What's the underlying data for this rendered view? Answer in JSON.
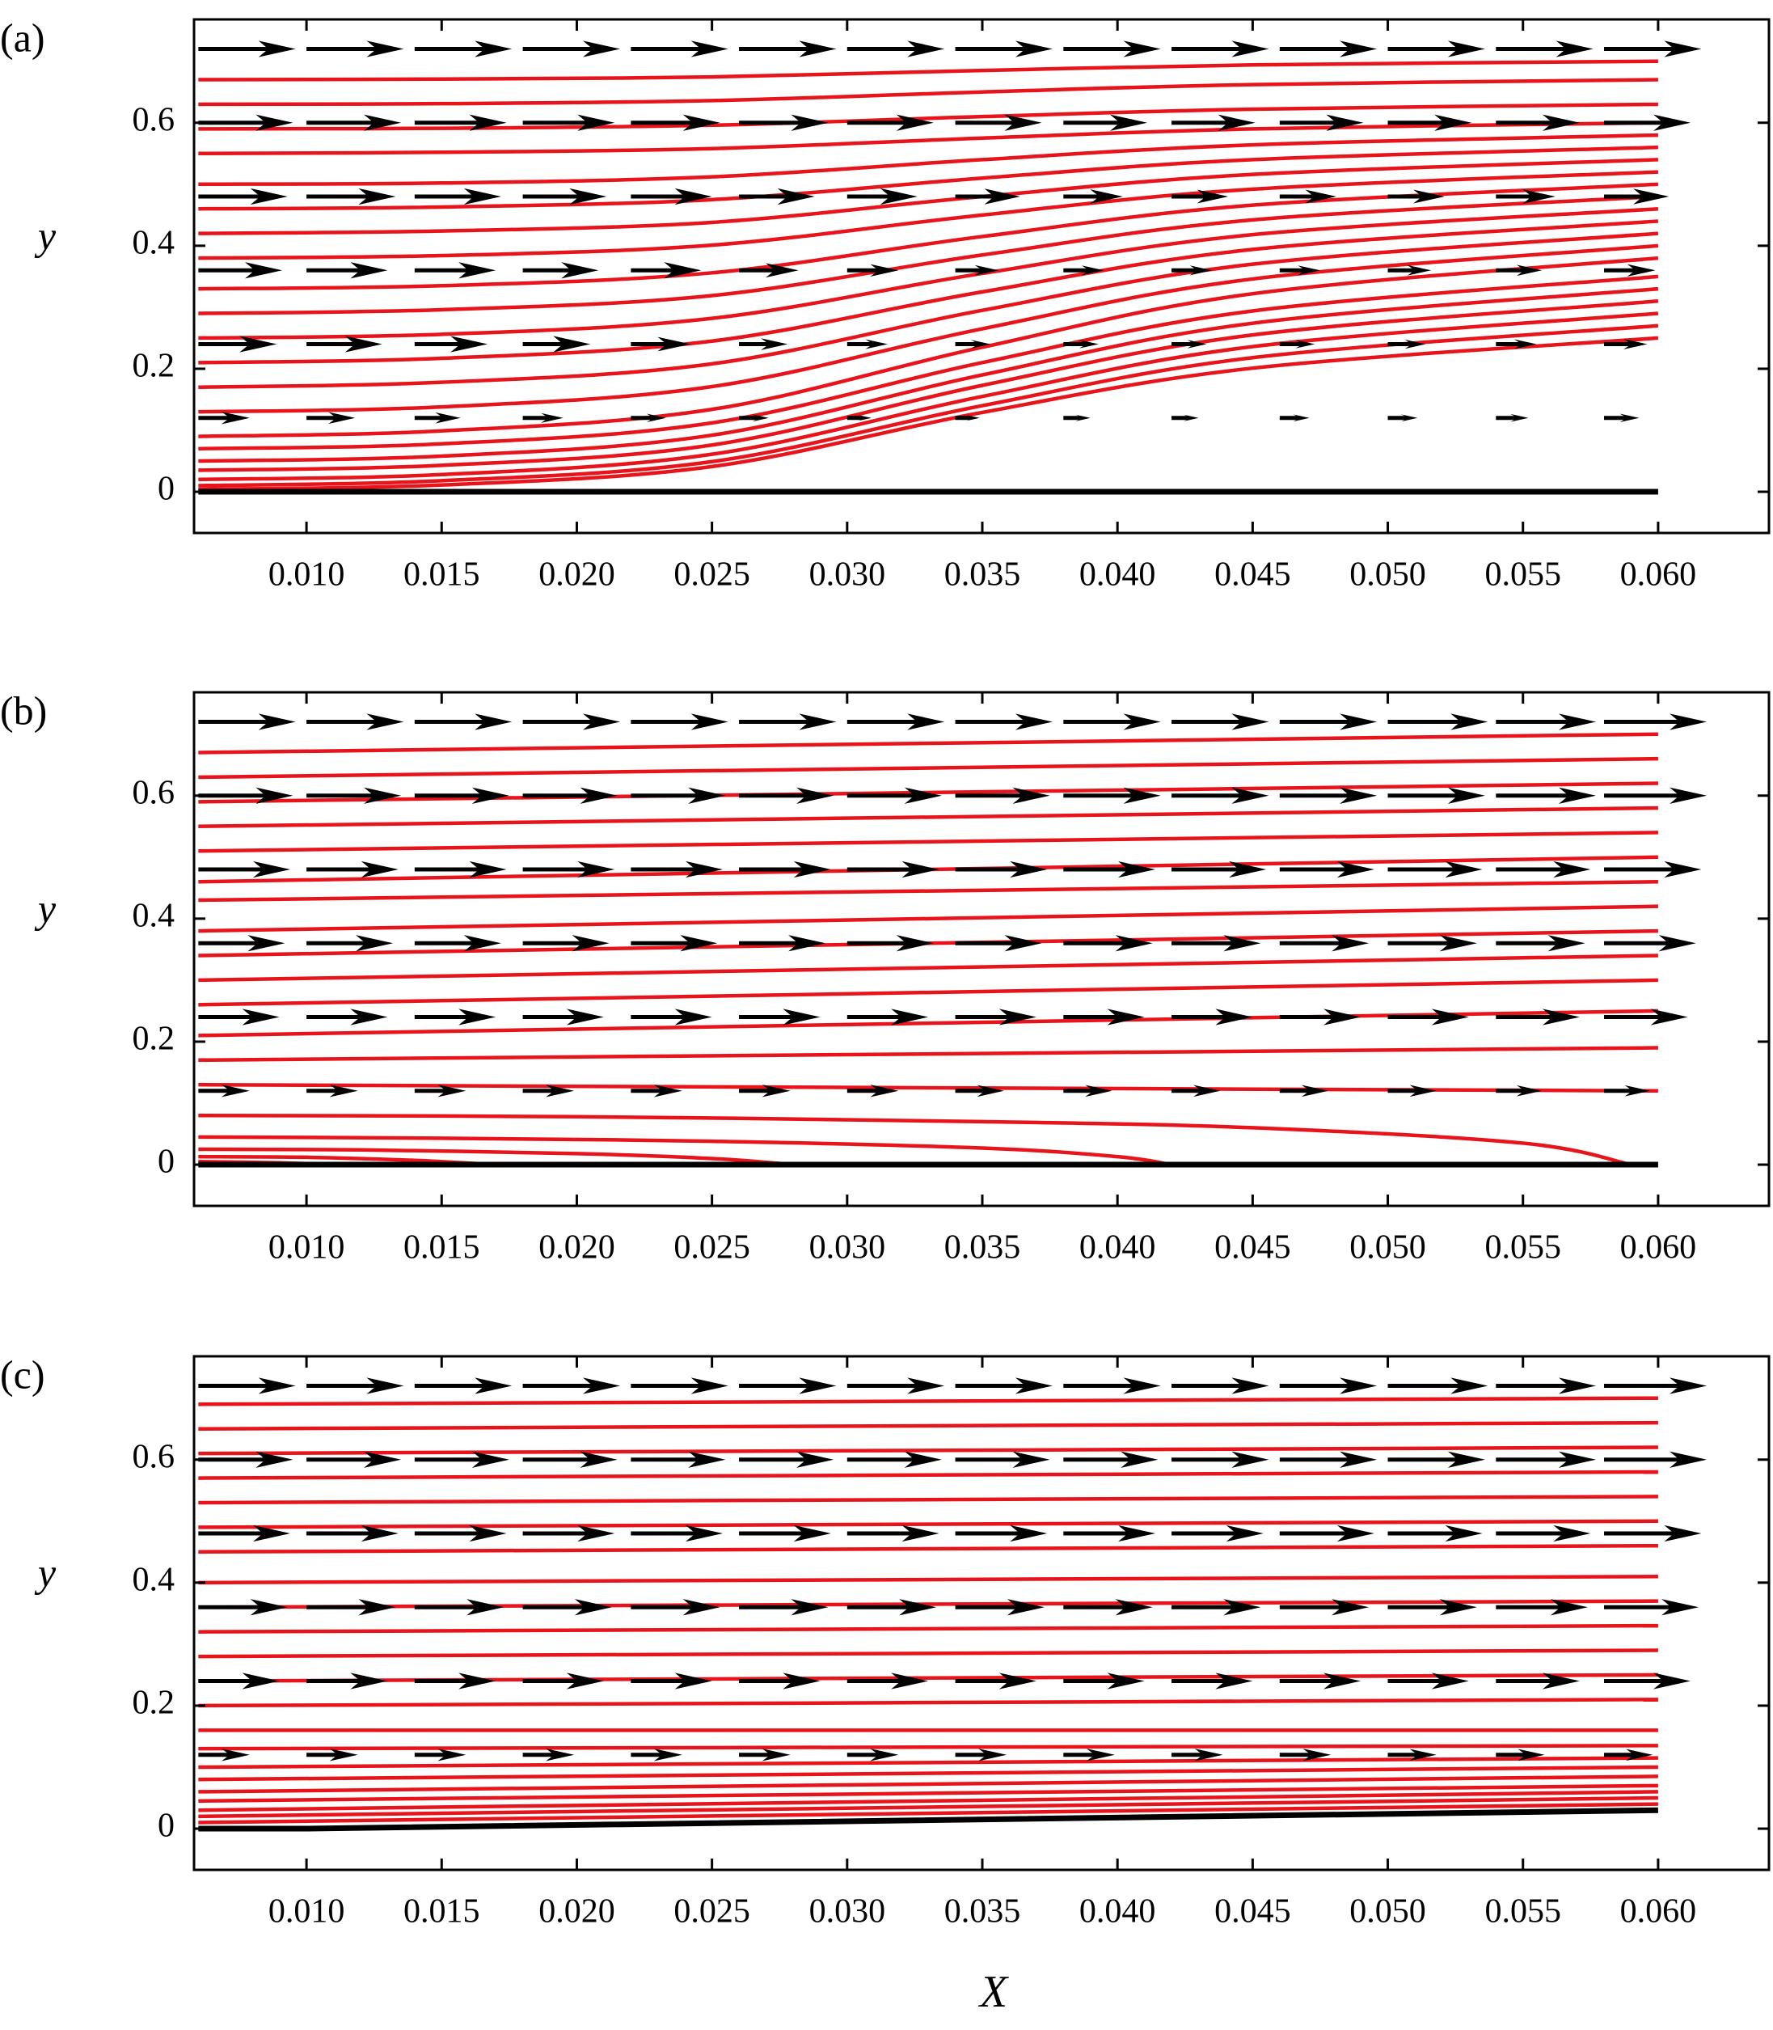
{
  "chart_data": [
    {
      "type": "streamlines",
      "panel_label": "(a)",
      "ylabel": "y",
      "xlim": [
        0.00584,
        0.0641
      ],
      "ylim": [
        -0.067,
        0.768
      ],
      "xticks": [
        {
          "value": 0.01,
          "label": "0.010"
        },
        {
          "value": 0.015,
          "label": "0.015"
        },
        {
          "value": 0.02,
          "label": "0.020"
        },
        {
          "value": 0.025,
          "label": "0.025"
        },
        {
          "value": 0.03,
          "label": "0.030"
        },
        {
          "value": 0.035,
          "label": "0.035"
        },
        {
          "value": 0.04,
          "label": "0.040"
        },
        {
          "value": 0.045,
          "label": "0.045"
        },
        {
          "value": 0.05,
          "label": "0.050"
        },
        {
          "value": 0.055,
          "label": "0.055"
        },
        {
          "value": 0.06,
          "label": "0.060"
        }
      ],
      "yticks": [
        0,
        0.2,
        0.4,
        0.6
      ],
      "line_color": "#e8141c",
      "wall_color": "#000000",
      "vector_color": "#000000",
      "x": [
        0.006,
        0.015,
        0.025,
        0.035,
        0.045,
        0.06
      ],
      "streamlines": [
        {
          "values": [
            0.67,
            0.671,
            0.6745,
            0.685,
            0.694,
            0.7
          ]
        },
        {
          "values": [
            0.63,
            0.631,
            0.636,
            0.65,
            0.662,
            0.67
          ]
        },
        {
          "values": [
            0.59,
            0.591,
            0.596,
            0.61,
            0.622,
            0.63
          ]
        },
        {
          "values": [
            0.55,
            0.552,
            0.558,
            0.575,
            0.59,
            0.6
          ]
        },
        {
          "values": [
            0.5,
            0.502,
            0.512,
            0.54,
            0.564,
            0.58
          ]
        },
        {
          "values": [
            0.46,
            0.463,
            0.475,
            0.51,
            0.54,
            0.56
          ]
        },
        {
          "values": [
            0.42,
            0.424,
            0.438,
            0.48,
            0.516,
            0.54
          ]
        },
        {
          "values": [
            0.38,
            0.384,
            0.401,
            0.45,
            0.492,
            0.52
          ]
        },
        {
          "values": [
            0.33,
            0.335,
            0.356,
            0.415,
            0.466,
            0.5
          ]
        },
        {
          "values": [
            0.29,
            0.296,
            0.319,
            0.385,
            0.442,
            0.48
          ]
        },
        {
          "values": [
            0.25,
            0.256,
            0.282,
            0.355,
            0.418,
            0.46
          ]
        },
        {
          "values": [
            0.21,
            0.217,
            0.245,
            0.325,
            0.394,
            0.44
          ]
        },
        {
          "values": [
            0.17,
            0.178,
            0.208,
            0.295,
            0.37,
            0.42
          ]
        },
        {
          "values": [
            0.13,
            0.138,
            0.171,
            0.265,
            0.346,
            0.4
          ]
        },
        {
          "values": [
            0.09,
            0.099,
            0.134,
            0.235,
            0.322,
            0.38
          ]
        },
        {
          "values": [
            0.07,
            0.078,
            0.112,
            0.21,
            0.294,
            0.35
          ]
        },
        {
          "values": [
            0.05,
            0.058,
            0.092,
            0.19,
            0.274,
            0.33
          ]
        },
        {
          "values": [
            0.035,
            0.043,
            0.076,
            0.173,
            0.255,
            0.31
          ]
        },
        {
          "values": [
            0.02,
            0.028,
            0.061,
            0.155,
            0.236,
            0.29
          ]
        },
        {
          "values": [
            0.01,
            0.018,
            0.049,
            0.14,
            0.218,
            0.27
          ]
        },
        {
          "values": [
            0.004,
            0.011,
            0.041,
            0.129,
            0.201,
            0.25
          ]
        }
      ],
      "wall": {
        "x": [
          0.006,
          0.06
        ],
        "values": [
          0,
          0
        ]
      },
      "vector_x": [
        0.006,
        0.01,
        0.014,
        0.018,
        0.022,
        0.026,
        0.03,
        0.034,
        0.038,
        0.042,
        0.046,
        0.05,
        0.054,
        0.058
      ],
      "vectors": [
        {
          "y": 0.72,
          "u": [
            0.0036,
            0.0036,
            0.0036,
            0.0036,
            0.0036,
            0.0036,
            0.0036,
            0.0036,
            0.0036,
            0.0036,
            0.0036,
            0.0036,
            0.0036,
            0.0036
          ]
        },
        {
          "y": 0.6,
          "u": [
            0.0035,
            0.0035,
            0.0034,
            0.0034,
            0.0033,
            0.0033,
            0.0032,
            0.0032,
            0.0031,
            0.0031,
            0.0031,
            0.0031,
            0.0031,
            0.0032
          ]
        },
        {
          "y": 0.48,
          "u": [
            0.0033,
            0.0033,
            0.0032,
            0.0031,
            0.003,
            0.0028,
            0.0026,
            0.0024,
            0.0022,
            0.0021,
            0.0021,
            0.0021,
            0.0022,
            0.0024
          ]
        },
        {
          "y": 0.36,
          "u": [
            0.0031,
            0.003,
            0.003,
            0.0028,
            0.0026,
            0.0022,
            0.0019,
            0.0016,
            0.0015,
            0.0015,
            0.0015,
            0.0016,
            0.0017,
            0.0019
          ]
        },
        {
          "y": 0.24,
          "u": [
            0.0029,
            0.0028,
            0.0027,
            0.0025,
            0.0022,
            0.0018,
            0.0015,
            0.0013,
            0.0013,
            0.0013,
            0.0013,
            0.0014,
            0.0015,
            0.0016
          ]
        },
        {
          "y": 0.12,
          "u": [
            0.0019,
            0.0018,
            0.0017,
            0.0015,
            0.0013,
            0.0011,
            0.0009,
            0.0009,
            0.001,
            0.001,
            0.0011,
            0.0011,
            0.0012,
            0.0013
          ]
        }
      ]
    },
    {
      "type": "streamlines",
      "panel_label": "(b)",
      "ylabel": "y",
      "xlim": [
        0.00584,
        0.0641
      ],
      "ylim": [
        -0.067,
        0.768
      ],
      "xticks": [
        {
          "value": 0.01,
          "label": "0.010"
        },
        {
          "value": 0.015,
          "label": "0.015"
        },
        {
          "value": 0.02,
          "label": "0.020"
        },
        {
          "value": 0.025,
          "label": "0.025"
        },
        {
          "value": 0.03,
          "label": "0.030"
        },
        {
          "value": 0.035,
          "label": "0.035"
        },
        {
          "value": 0.04,
          "label": "0.040"
        },
        {
          "value": 0.045,
          "label": "0.045"
        },
        {
          "value": 0.05,
          "label": "0.050"
        },
        {
          "value": 0.055,
          "label": "0.055"
        },
        {
          "value": 0.06,
          "label": "0.060"
        }
      ],
      "yticks": [
        0,
        0.2,
        0.4,
        0.6
      ],
      "line_color": "#e8141c",
      "wall_color": "#000000",
      "vector_color": "#000000",
      "x": [
        0.006,
        0.06
      ],
      "streamlines": [
        {
          "values": [
            0.67,
            0.7
          ]
        },
        {
          "values": [
            0.63,
            0.66
          ]
        },
        {
          "values": [
            0.59,
            0.62
          ]
        },
        {
          "values": [
            0.55,
            0.58
          ]
        },
        {
          "values": [
            0.51,
            0.54
          ]
        },
        {
          "values": [
            0.46,
            0.5
          ]
        },
        {
          "values": [
            0.43,
            0.46
          ]
        },
        {
          "values": [
            0.38,
            0.42
          ]
        },
        {
          "values": [
            0.34,
            0.38
          ]
        },
        {
          "values": [
            0.3,
            0.34
          ]
        },
        {
          "values": [
            0.26,
            0.3
          ]
        },
        {
          "values": [
            0.21,
            0.25
          ]
        },
        {
          "values": [
            0.17,
            0.19
          ]
        },
        {
          "values": [
            0.13,
            0.12
          ]
        },
        {
          "x": [
            0.006,
            0.02,
            0.035,
            0.045,
            0.055,
            0.059
          ],
          "values": [
            0.08,
            0.078,
            0.07,
            0.06,
            0.035,
            0
          ]
        },
        {
          "x": [
            0.006,
            0.015,
            0.025,
            0.035,
            0.04,
            0.042
          ],
          "values": [
            0.045,
            0.043,
            0.038,
            0.027,
            0.013,
            0
          ]
        },
        {
          "x": [
            0.006,
            0.012,
            0.02,
            0.025,
            0.028
          ],
          "values": [
            0.025,
            0.024,
            0.018,
            0.01,
            0
          ]
        },
        {
          "x": [
            0.006,
            0.01,
            0.014,
            0.017
          ],
          "values": [
            0.013,
            0.012,
            0.007,
            0
          ]
        },
        {
          "x": [
            0.006,
            0.009,
            0.011
          ],
          "values": [
            0.005,
            0.003,
            0
          ]
        }
      ],
      "wall": {
        "x": [
          0.006,
          0.06
        ],
        "values": [
          0,
          0
        ]
      },
      "vector_x": [
        0.006,
        0.01,
        0.014,
        0.018,
        0.022,
        0.026,
        0.03,
        0.034,
        0.038,
        0.042,
        0.046,
        0.05,
        0.054,
        0.058
      ],
      "vectors": [
        {
          "y": 0.72,
          "u": [
            0.0036,
            0.0036,
            0.0036,
            0.0036,
            0.0036,
            0.0036,
            0.0036,
            0.0036,
            0.0036,
            0.0036,
            0.0036,
            0.0037,
            0.0037,
            0.0038
          ]
        },
        {
          "y": 0.6,
          "u": [
            0.0035,
            0.0035,
            0.0035,
            0.0035,
            0.0035,
            0.0035,
            0.0035,
            0.0035,
            0.0036,
            0.0036,
            0.0036,
            0.0036,
            0.0037,
            0.0038
          ]
        },
        {
          "y": 0.48,
          "u": [
            0.0034,
            0.0034,
            0.0034,
            0.0034,
            0.0034,
            0.0034,
            0.0034,
            0.0034,
            0.0034,
            0.0035,
            0.0035,
            0.0035,
            0.0035,
            0.0036
          ]
        },
        {
          "y": 0.36,
          "u": [
            0.0032,
            0.0032,
            0.0032,
            0.0032,
            0.0032,
            0.0032,
            0.0032,
            0.0032,
            0.0033,
            0.0033,
            0.0033,
            0.0033,
            0.0033,
            0.0034
          ]
        },
        {
          "y": 0.24,
          "u": [
            0.003,
            0.003,
            0.003,
            0.003,
            0.003,
            0.003,
            0.003,
            0.003,
            0.003,
            0.003,
            0.003,
            0.003,
            0.0031,
            0.0031
          ]
        },
        {
          "y": 0.12,
          "u": [
            0.0019,
            0.0019,
            0.0019,
            0.0019,
            0.0019,
            0.0019,
            0.0019,
            0.0018,
            0.0018,
            0.0018,
            0.0018,
            0.0018,
            0.0017,
            0.0017
          ]
        }
      ]
    },
    {
      "type": "streamlines",
      "panel_label": "(c)",
      "ylabel": "y",
      "xlabel": "X",
      "xlim": [
        0.00584,
        0.0641
      ],
      "ylim": [
        -0.067,
        0.768
      ],
      "xticks": [
        {
          "value": 0.01,
          "label": "0.010"
        },
        {
          "value": 0.015,
          "label": "0.015"
        },
        {
          "value": 0.02,
          "label": "0.020"
        },
        {
          "value": 0.025,
          "label": "0.025"
        },
        {
          "value": 0.03,
          "label": "0.030"
        },
        {
          "value": 0.035,
          "label": "0.035"
        },
        {
          "value": 0.04,
          "label": "0.040"
        },
        {
          "value": 0.045,
          "label": "0.045"
        },
        {
          "value": 0.05,
          "label": "0.050"
        },
        {
          "value": 0.055,
          "label": "0.055"
        },
        {
          "value": 0.06,
          "label": "0.060"
        }
      ],
      "yticks": [
        0,
        0.2,
        0.4,
        0.6
      ],
      "line_color": "#e8141c",
      "wall_color": "#000000",
      "vector_color": "#000000",
      "x": [
        0.006,
        0.06
      ],
      "streamlines": [
        {
          "values": [
            0.69,
            0.7
          ]
        },
        {
          "values": [
            0.65,
            0.66
          ]
        },
        {
          "values": [
            0.61,
            0.62
          ]
        },
        {
          "values": [
            0.57,
            0.58
          ]
        },
        {
          "values": [
            0.53,
            0.54
          ]
        },
        {
          "values": [
            0.49,
            0.5
          ]
        },
        {
          "values": [
            0.45,
            0.46
          ]
        },
        {
          "values": [
            0.4,
            0.41
          ]
        },
        {
          "values": [
            0.36,
            0.37
          ]
        },
        {
          "values": [
            0.32,
            0.33
          ]
        },
        {
          "values": [
            0.28,
            0.29
          ]
        },
        {
          "values": [
            0.24,
            0.25
          ]
        },
        {
          "values": [
            0.2,
            0.21
          ]
        },
        {
          "values": [
            0.16,
            0.16
          ]
        },
        {
          "values": [
            0.13,
            0.135
          ]
        },
        {
          "values": [
            0.1,
            0.115
          ]
        },
        {
          "values": [
            0.08,
            0.1
          ]
        },
        {
          "values": [
            0.06,
            0.085
          ]
        },
        {
          "values": [
            0.045,
            0.07
          ]
        },
        {
          "values": [
            0.03,
            0.06
          ]
        },
        {
          "values": [
            0.02,
            0.05
          ]
        },
        {
          "values": [
            0.01,
            0.04
          ]
        }
      ],
      "wall": {
        "x": [
          0.006,
          0.01,
          0.06
        ],
        "values": [
          0,
          0,
          0.03
        ]
      },
      "vector_x": [
        0.006,
        0.01,
        0.014,
        0.018,
        0.022,
        0.026,
        0.03,
        0.034,
        0.038,
        0.042,
        0.046,
        0.05,
        0.054,
        0.058
      ],
      "vectors": [
        {
          "y": 0.72,
          "u": [
            0.0036,
            0.0036,
            0.0036,
            0.0036,
            0.0036,
            0.0036,
            0.0036,
            0.0036,
            0.0036,
            0.0036,
            0.0036,
            0.0037,
            0.0037,
            0.0038
          ]
        },
        {
          "y": 0.6,
          "u": [
            0.0035,
            0.0035,
            0.0035,
            0.0035,
            0.0035,
            0.0035,
            0.0035,
            0.0035,
            0.0035,
            0.0036,
            0.0036,
            0.0036,
            0.0037,
            0.0038
          ]
        },
        {
          "y": 0.48,
          "u": [
            0.0034,
            0.0034,
            0.0034,
            0.0034,
            0.0034,
            0.0034,
            0.0034,
            0.0034,
            0.0034,
            0.0034,
            0.0035,
            0.0035,
            0.0035,
            0.0036
          ]
        },
        {
          "y": 0.36,
          "u": [
            0.0033,
            0.0033,
            0.0033,
            0.0033,
            0.0033,
            0.0033,
            0.0033,
            0.0033,
            0.0033,
            0.0033,
            0.0033,
            0.0033,
            0.0034,
            0.0035
          ]
        },
        {
          "y": 0.24,
          "u": [
            0.003,
            0.003,
            0.003,
            0.003,
            0.003,
            0.003,
            0.003,
            0.003,
            0.003,
            0.003,
            0.003,
            0.003,
            0.0031,
            0.0032
          ]
        },
        {
          "y": 0.12,
          "u": [
            0.0019,
            0.0019,
            0.0019,
            0.0019,
            0.0019,
            0.0019,
            0.0019,
            0.0019,
            0.0019,
            0.0019,
            0.0019,
            0.0018,
            0.0018,
            0.0018
          ]
        }
      ]
    }
  ]
}
